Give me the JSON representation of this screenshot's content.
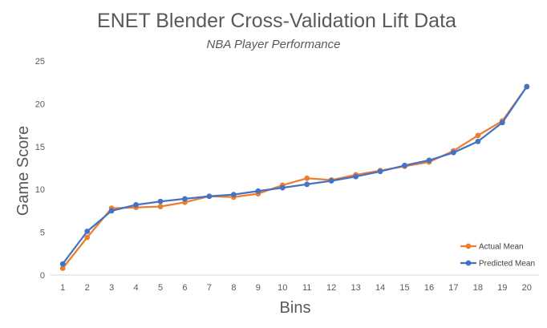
{
  "chart_data": {
    "type": "line",
    "title": "ENET Blender Cross-Validation Lift Data",
    "subtitle": "NBA Player Performance",
    "xlabel": "Bins",
    "ylabel": "Game Score",
    "x": [
      "1",
      "2",
      "3",
      "4",
      "5",
      "6",
      "7",
      "8",
      "9",
      "10",
      "11",
      "12",
      "13",
      "14",
      "15",
      "16",
      "17",
      "18",
      "19",
      "20"
    ],
    "ylim": [
      0,
      25
    ],
    "yticks": [
      "0",
      "5",
      "10",
      "15",
      "20",
      "25"
    ],
    "grid": false,
    "legend_position": "bottom-right",
    "series": [
      {
        "name": "Actual Mean",
        "color": "#ED7D31",
        "values": [
          0.8,
          4.4,
          7.8,
          7.9,
          8.0,
          8.5,
          9.2,
          9.1,
          9.5,
          10.5,
          11.3,
          11.1,
          11.7,
          12.2,
          12.7,
          13.2,
          14.5,
          16.3,
          18.0,
          22.0
        ]
      },
      {
        "name": "Predicted Mean",
        "color": "#4472C4",
        "values": [
          1.3,
          5.1,
          7.5,
          8.2,
          8.6,
          8.9,
          9.2,
          9.4,
          9.8,
          10.2,
          10.6,
          11.0,
          11.5,
          12.1,
          12.8,
          13.4,
          14.3,
          15.6,
          17.8,
          22.0
        ]
      }
    ]
  }
}
